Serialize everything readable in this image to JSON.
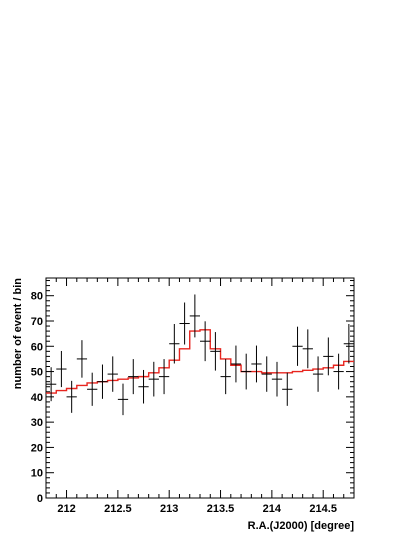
{
  "chart_data": {
    "type": "scatter",
    "xlabel": "R.A.(J2000) [degree]",
    "ylabel": "number of event / bin",
    "xlim": [
      211.8,
      214.8
    ],
    "ylim": [
      0,
      87
    ],
    "xticks": [
      212,
      212.5,
      213,
      213.5,
      214,
      214.5
    ],
    "xtick_labels": [
      "212",
      "212.5",
      "213",
      "213.5",
      "214",
      "214.5"
    ],
    "yticks": [
      0,
      10,
      20,
      30,
      40,
      50,
      60,
      70,
      80
    ],
    "ytick_labels": [
      "0",
      "10",
      "20",
      "30",
      "40",
      "50",
      "60",
      "70",
      "80"
    ],
    "grid": false,
    "legend": "none",
    "series": [
      {
        "type": "errorbar",
        "color": "#000000",
        "bin_width": 0.1,
        "x": [
          211.85,
          211.95,
          212.05,
          212.15,
          212.25,
          212.35,
          212.45,
          212.55,
          212.65,
          212.75,
          212.85,
          212.95,
          213.05,
          213.15,
          213.25,
          213.35,
          213.45,
          213.55,
          213.65,
          213.75,
          213.85,
          213.95,
          214.05,
          214.15,
          214.25,
          214.35,
          214.45,
          214.55,
          214.65,
          214.75
        ],
        "y": [
          45,
          51,
          40,
          55,
          43,
          46,
          49,
          39,
          48,
          44,
          47,
          48,
          61,
          69,
          72,
          62,
          58,
          48,
          53,
          50,
          53,
          49,
          47,
          43,
          60,
          59,
          49,
          56,
          50,
          61
        ]
      },
      {
        "type": "step",
        "color": "#e8251f",
        "x_edges": [
          211.8,
          211.9,
          212.0,
          212.1,
          212.2,
          212.3,
          212.4,
          212.5,
          212.6,
          212.7,
          212.8,
          212.9,
          213.0,
          213.1,
          213.2,
          213.3,
          213.4,
          213.5,
          213.6,
          213.7,
          213.8,
          213.9,
          214.0,
          214.1,
          214.2,
          214.3,
          214.4,
          214.5,
          214.6,
          214.7,
          214.8
        ],
        "y": [
          41.5,
          42.5,
          43.3,
          44.5,
          45.5,
          46,
          46.5,
          47,
          47.5,
          48,
          49.5,
          51.5,
          54.5,
          59,
          66,
          66.5,
          59,
          55,
          52.5,
          50,
          50,
          49.5,
          49.5,
          49.5,
          50,
          50.5,
          51,
          51.5,
          52.5,
          54
        ]
      }
    ]
  }
}
